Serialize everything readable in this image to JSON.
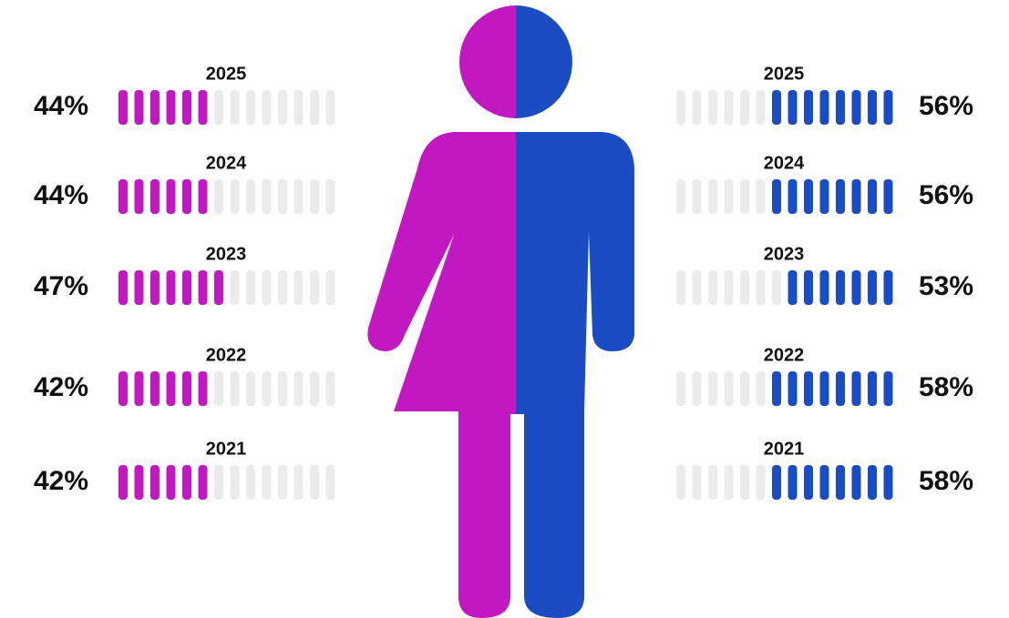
{
  "chart_data": {
    "type": "pictogram",
    "categories": [
      "2025",
      "2024",
      "2023",
      "2022",
      "2021"
    ],
    "series": [
      {
        "color": "#c218c2",
        "values": [
          44,
          44,
          47,
          42,
          42
        ],
        "value_labels": [
          "44%",
          "44%",
          "47%",
          "42%",
          "42%"
        ]
      },
      {
        "color": "#1a4cc4",
        "values": [
          56,
          56,
          53,
          58,
          58
        ],
        "value_labels": [
          "56%",
          "56%",
          "53%",
          "58%",
          "58%"
        ]
      }
    ]
  }
}
